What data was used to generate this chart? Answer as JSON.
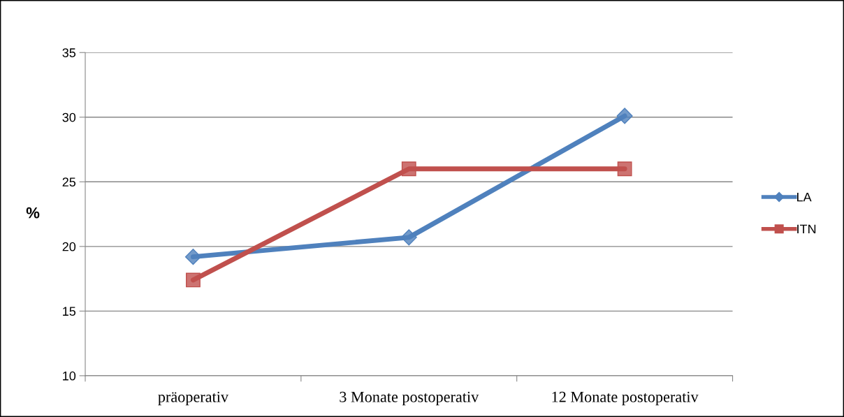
{
  "chart_data": {
    "type": "line",
    "ylabel": "%",
    "categories": [
      "präoperativ",
      "3 Monate postoperativ",
      "12 Monate postoperativ"
    ],
    "series": [
      {
        "name": "LA",
        "color": "#4f81bd",
        "values": [
          19.2,
          20.7,
          30.1
        ],
        "marker": "diamond"
      },
      {
        "name": "ITN",
        "color": "#c0504d",
        "values": [
          17.4,
          26.0,
          26.0
        ],
        "marker": "square"
      }
    ],
    "ylim": [
      10,
      35
    ],
    "yticks": [
      10,
      15,
      20,
      25,
      30,
      35
    ],
    "grid": "y",
    "legend": "right",
    "line_style": "solid"
  }
}
